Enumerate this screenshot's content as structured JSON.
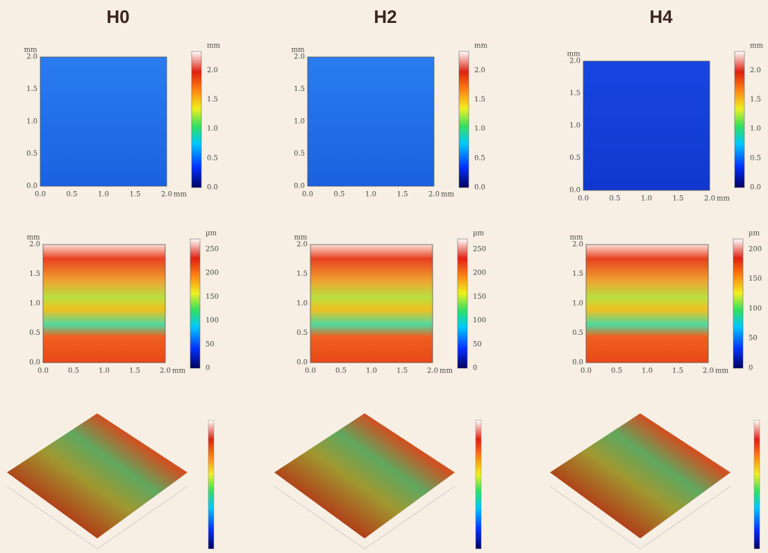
{
  "columns": [
    {
      "title": "H0",
      "height_map": {
        "y_unit": "mm",
        "x_unit": "mm",
        "x_ticks": [
          "0.0",
          "0.5",
          "1.0",
          "1.5",
          "2.0"
        ],
        "y_ticks": [
          "0.0",
          "0.5",
          "1.0",
          "1.5",
          "2.0"
        ],
        "colorbar_unit": "mm",
        "colorbar_ticks": [
          "0.0",
          "0.5",
          "1.0",
          "1.5",
          "2.0"
        ]
      },
      "roughness_map": {
        "y_unit": "mm",
        "x_unit": "mm",
        "x_ticks": [
          "0.0",
          "0.5",
          "1.0",
          "1.5",
          "2.0"
        ],
        "y_ticks": [
          "0.0",
          "0.5",
          "1.0",
          "1.5",
          "2.0"
        ],
        "colorbar_unit": "µm",
        "colorbar_ticks": [
          "0",
          "50",
          "100",
          "150",
          "200",
          "250"
        ]
      }
    },
    {
      "title": "H2",
      "height_map": {
        "y_unit": "mm",
        "x_unit": "mm",
        "x_ticks": [
          "0.0",
          "0.5",
          "1.0",
          "1.5",
          "2.0"
        ],
        "y_ticks": [
          "0.0",
          "0.5",
          "1.0",
          "1.5",
          "2.0"
        ],
        "colorbar_unit": "mm",
        "colorbar_ticks": [
          "0.0",
          "0.5",
          "1.0",
          "1.5",
          "2.0"
        ]
      },
      "roughness_map": {
        "y_unit": "mm",
        "x_unit": "mm",
        "x_ticks": [
          "0.0",
          "0.5",
          "1.0",
          "1.5",
          "2.0"
        ],
        "y_ticks": [
          "0.0",
          "0.5",
          "1.0",
          "1.5",
          "2.0"
        ],
        "colorbar_unit": "µm",
        "colorbar_ticks": [
          "0",
          "50",
          "100",
          "150",
          "200",
          "250"
        ]
      }
    },
    {
      "title": "H4",
      "height_map": {
        "y_unit": "mm",
        "x_unit": "mm",
        "x_ticks": [
          "0.0",
          "0.5",
          "1.0",
          "1.5",
          "2.0"
        ],
        "y_ticks": [
          "0.0",
          "0.5",
          "1.0",
          "1.5",
          "2.0"
        ],
        "colorbar_unit": "mm",
        "colorbar_ticks": [
          "0.0",
          "0.5",
          "1.0",
          "1.5",
          "2.0"
        ]
      },
      "roughness_map": {
        "y_unit": "mm",
        "x_unit": "mm",
        "x_ticks": [
          "0.0",
          "0.5",
          "1.0",
          "1.5",
          "2.0"
        ],
        "y_ticks": [
          "0.0",
          "0.5",
          "1.0",
          "1.5",
          "2.0"
        ],
        "colorbar_unit": "µm",
        "colorbar_ticks": [
          "0",
          "50",
          "100",
          "150",
          "200"
        ]
      }
    }
  ]
}
